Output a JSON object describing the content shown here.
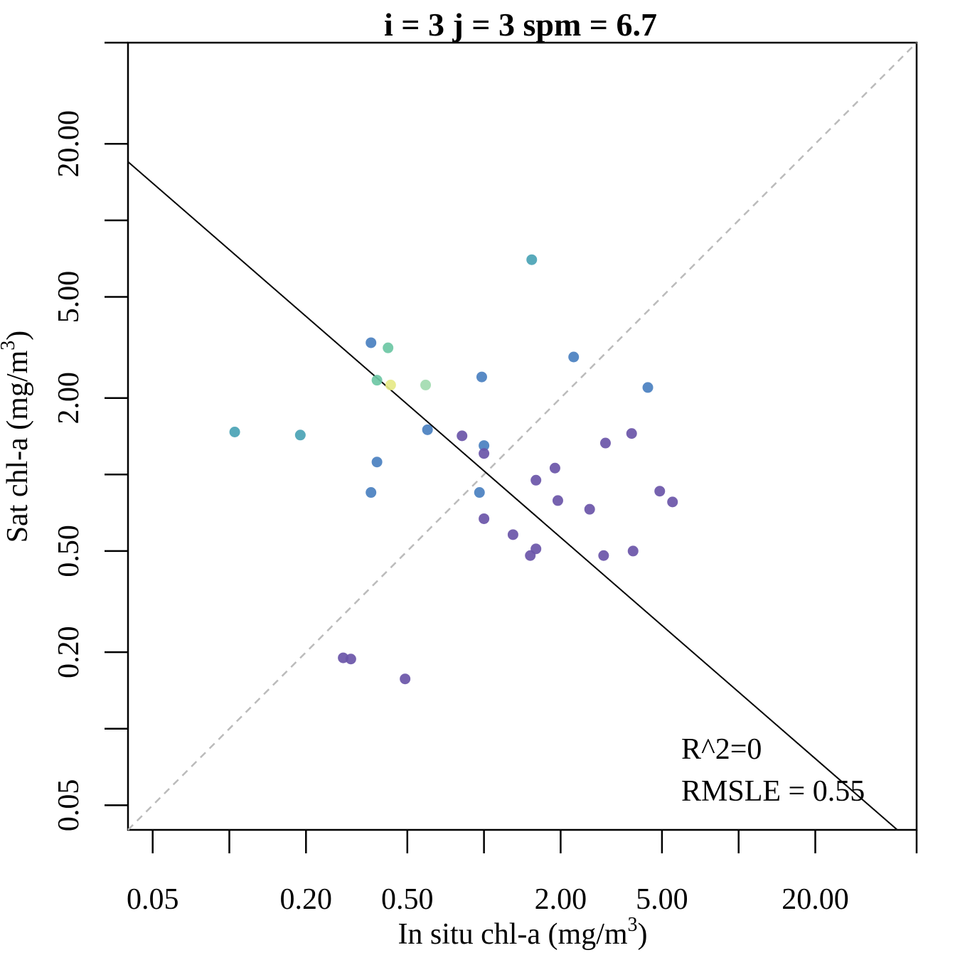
{
  "chart_data": {
    "type": "scatter",
    "title": "i = 3 j = 3 spm = 6.7",
    "xlabel": "In situ chl-a (mg/m",
    "xlabel_sup": "3",
    "xlabel_end": ")",
    "ylabel": "Sat chl-a (mg/m",
    "ylabel_sup": "3",
    "ylabel_end": ")",
    "log_scale": true,
    "xlim": [
      0.04,
      50
    ],
    "ylim": [
      0.04,
      50
    ],
    "x_ticks": [
      0.05,
      0.1,
      0.2,
      0.5,
      1,
      2,
      5,
      10,
      20,
      50
    ],
    "x_tick_labels": [
      "0.05",
      "",
      "0.20",
      "0.50",
      "",
      "2.00",
      "5.00",
      "",
      "20.00",
      ""
    ],
    "y_ticks": [
      0.05,
      0.1,
      0.2,
      0.5,
      1,
      2,
      5,
      10,
      20,
      50
    ],
    "y_tick_labels": [
      "0.05",
      "",
      "0.20",
      "0.50",
      "",
      "2.00",
      "5.00",
      "",
      "20.00",
      ""
    ],
    "identity_line": {
      "color": "#bbbbbb",
      "style": "dashed"
    },
    "fit_line": {
      "x": [
        0.04,
        42
      ],
      "y": [
        17.0,
        0.04
      ],
      "color": "#000000"
    },
    "annotations": [
      "R^2=0",
      "RMSLE = 0.55"
    ],
    "points": [
      {
        "x": 1.54,
        "y": 7.0,
        "color": "#4aa3b5"
      },
      {
        "x": 0.36,
        "y": 3.3,
        "color": "#4a80c0"
      },
      {
        "x": 0.42,
        "y": 3.15,
        "color": "#6cc7a4"
      },
      {
        "x": 0.38,
        "y": 2.35,
        "color": "#6cc7a4"
      },
      {
        "x": 0.43,
        "y": 2.25,
        "color": "#e6e987"
      },
      {
        "x": 0.59,
        "y": 2.25,
        "color": "#a2dbb0"
      },
      {
        "x": 0.98,
        "y": 2.42,
        "color": "#4a80c0"
      },
      {
        "x": 2.25,
        "y": 2.9,
        "color": "#4a80c0"
      },
      {
        "x": 4.4,
        "y": 2.2,
        "color": "#4a80c0"
      },
      {
        "x": 0.105,
        "y": 1.47,
        "color": "#4aa3b5"
      },
      {
        "x": 0.19,
        "y": 1.43,
        "color": "#4aa3b5"
      },
      {
        "x": 0.6,
        "y": 1.5,
        "color": "#4a80c0"
      },
      {
        "x": 0.82,
        "y": 1.42,
        "color": "#6a55a8"
      },
      {
        "x": 1.0,
        "y": 1.3,
        "color": "#4a80c0"
      },
      {
        "x": 1.0,
        "y": 1.21,
        "color": "#6a55a8"
      },
      {
        "x": 0.38,
        "y": 1.12,
        "color": "#4a80c0"
      },
      {
        "x": 3.0,
        "y": 1.33,
        "color": "#6a55a8"
      },
      {
        "x": 3.8,
        "y": 1.45,
        "color": "#6a55a8"
      },
      {
        "x": 1.9,
        "y": 1.06,
        "color": "#6a55a8"
      },
      {
        "x": 1.6,
        "y": 0.95,
        "color": "#6a55a8"
      },
      {
        "x": 0.36,
        "y": 0.85,
        "color": "#4a80c0"
      },
      {
        "x": 0.96,
        "y": 0.85,
        "color": "#4a80c0"
      },
      {
        "x": 1.95,
        "y": 0.79,
        "color": "#6a55a8"
      },
      {
        "x": 2.6,
        "y": 0.73,
        "color": "#6a55a8"
      },
      {
        "x": 4.9,
        "y": 0.86,
        "color": "#6a55a8"
      },
      {
        "x": 5.5,
        "y": 0.78,
        "color": "#6a55a8"
      },
      {
        "x": 1.0,
        "y": 0.67,
        "color": "#6a55a8"
      },
      {
        "x": 1.3,
        "y": 0.58,
        "color": "#6a55a8"
      },
      {
        "x": 1.6,
        "y": 0.51,
        "color": "#6a55a8"
      },
      {
        "x": 1.52,
        "y": 0.48,
        "color": "#6a55a8"
      },
      {
        "x": 2.95,
        "y": 0.48,
        "color": "#6a55a8"
      },
      {
        "x": 3.85,
        "y": 0.5,
        "color": "#6a55a8"
      },
      {
        "x": 0.28,
        "y": 0.19,
        "color": "#6a55a8"
      },
      {
        "x": 0.3,
        "y": 0.188,
        "color": "#6a55a8"
      },
      {
        "x": 0.49,
        "y": 0.157,
        "color": "#6a55a8"
      }
    ]
  }
}
